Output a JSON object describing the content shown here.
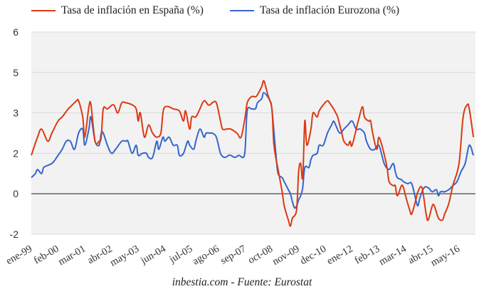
{
  "chart_data": {
    "type": "line",
    "title": "",
    "xlabel": "",
    "ylabel": "",
    "x_start": "ene-99",
    "x_months_total": 216,
    "x_tick_labels": [
      "ene-99",
      "feb-00",
      "mar-01",
      "abr-02",
      "may-03",
      "jun-04",
      "jul-05",
      "ago-06",
      "sep-07",
      "oct-08",
      "nov-09",
      "dec-10",
      "ene-12",
      "feb-13",
      "mar-14",
      "abr-15",
      "may-16"
    ],
    "x_tick_step_months": 13,
    "y_tick_labels": [
      "-2",
      "0",
      "2",
      "3",
      "5",
      "6"
    ],
    "y_tick_values": [
      -2,
      0,
      2,
      3,
      5,
      6
    ],
    "ylim": [
      -2,
      6
    ],
    "grid": true,
    "zero_line": true,
    "legend_position": "top",
    "series": [
      {
        "name": "Tasa de inflación en España (%)",
        "color": "#dc3912",
        "points": [
          [
            0,
            1.9
          ],
          [
            3,
            2.4
          ],
          [
            5,
            2.6
          ],
          [
            8,
            2.3
          ],
          [
            10,
            2.5
          ],
          [
            13,
            2.8
          ],
          [
            15,
            2.9
          ],
          [
            18,
            3.2
          ],
          [
            20,
            3.4
          ],
          [
            22,
            3.6
          ],
          [
            23,
            3.6
          ],
          [
            25,
            2.9
          ],
          [
            26,
            2.4
          ],
          [
            28,
            3.3
          ],
          [
            29,
            3.4
          ],
          [
            31,
            2.3
          ],
          [
            33,
            2.3
          ],
          [
            34,
            2.4
          ],
          [
            35,
            3.2
          ],
          [
            37,
            3.2
          ],
          [
            40,
            3.4
          ],
          [
            42,
            3.0
          ],
          [
            44,
            3.5
          ],
          [
            46,
            3.5
          ],
          [
            49,
            3.4
          ],
          [
            51,
            3.2
          ],
          [
            52,
            2.8
          ],
          [
            53,
            3.0
          ],
          [
            55,
            2.4
          ],
          [
            57,
            2.7
          ],
          [
            59,
            2.5
          ],
          [
            61,
            2.4
          ],
          [
            63,
            2.5
          ],
          [
            64,
            3.0
          ],
          [
            65,
            3.3
          ],
          [
            67,
            3.3
          ],
          [
            69,
            3.2
          ],
          [
            72,
            3.1
          ],
          [
            74,
            2.8
          ],
          [
            75,
            3.1
          ],
          [
            77,
            2.6
          ],
          [
            78,
            2.9
          ],
          [
            80,
            2.9
          ],
          [
            82,
            3.2
          ],
          [
            84,
            3.6
          ],
          [
            86,
            3.4
          ],
          [
            87,
            3.4
          ],
          [
            88,
            3.5
          ],
          [
            90,
            3.5
          ],
          [
            92,
            2.8
          ],
          [
            93,
            2.6
          ],
          [
            95,
            2.6
          ],
          [
            97,
            2.6
          ],
          [
            100,
            2.5
          ],
          [
            102,
            2.4
          ],
          [
            104,
            2.9
          ],
          [
            105,
            3.5
          ],
          [
            107,
            3.8
          ],
          [
            109,
            3.8
          ],
          [
            110,
            3.9
          ],
          [
            112,
            4.3
          ],
          [
            113,
            4.6
          ],
          [
            114,
            4.3
          ],
          [
            115,
            3.9
          ],
          [
            117,
            3.2
          ],
          [
            118,
            2.2
          ],
          [
            120,
            1.2
          ],
          [
            122,
            0.1
          ],
          [
            123,
            -0.6
          ],
          [
            125,
            -1.3
          ],
          [
            126,
            -1.6
          ],
          [
            127,
            -1.2
          ],
          [
            129,
            -0.8
          ],
          [
            130,
            1.1
          ],
          [
            131,
            1.5
          ],
          [
            132,
            0.8
          ],
          [
            133,
            2.8
          ],
          [
            134,
            2.2
          ],
          [
            136,
            2.6
          ],
          [
            137,
            3.0
          ],
          [
            139,
            2.9
          ],
          [
            140,
            3.1
          ],
          [
            142,
            3.4
          ],
          [
            144,
            3.6
          ],
          [
            145,
            3.5
          ],
          [
            147,
            3.2
          ],
          [
            148,
            3.0
          ],
          [
            149,
            2.9
          ],
          [
            151,
            2.5
          ],
          [
            152,
            2.3
          ],
          [
            154,
            2.2
          ],
          [
            155,
            2.3
          ],
          [
            156,
            2.2
          ],
          [
            159,
            2.8
          ],
          [
            161,
            3.3
          ],
          [
            162,
            2.9
          ],
          [
            164,
            2.8
          ],
          [
            165,
            2.8
          ],
          [
            166,
            2.5
          ],
          [
            168,
            2.1
          ],
          [
            169,
            2.4
          ],
          [
            171,
            2.1
          ],
          [
            173,
            1.3
          ],
          [
            174,
            0.6
          ],
          [
            176,
            0.4
          ],
          [
            177,
            0.4
          ],
          [
            178,
            -0.1
          ],
          [
            180,
            0.4
          ],
          [
            181,
            0.3
          ],
          [
            182,
            -0.1
          ],
          [
            184,
            -0.8
          ],
          [
            185,
            -1.0
          ],
          [
            187,
            -0.3
          ],
          [
            188,
            0.1
          ],
          [
            190,
            0.3
          ],
          [
            192,
            -1.0
          ],
          [
            193,
            -1.3
          ],
          [
            195,
            -0.6
          ],
          [
            196,
            -0.6
          ],
          [
            198,
            -1.2
          ],
          [
            200,
            -1.3
          ],
          [
            201,
            -1.0
          ],
          [
            203,
            -0.5
          ],
          [
            205,
            0.4
          ],
          [
            208,
            1.5
          ],
          [
            210,
            2.9
          ],
          [
            212,
            3.4
          ],
          [
            213,
            3.2
          ],
          [
            215,
            2.4
          ]
        ]
      },
      {
        "name": "Tasa de inflación Eurozona (%)",
        "color": "#3366cc",
        "points": [
          [
            0,
            0.8
          ],
          [
            2,
            1.0
          ],
          [
            3,
            1.2
          ],
          [
            5,
            1.0
          ],
          [
            6,
            1.3
          ],
          [
            8,
            1.4
          ],
          [
            10,
            1.5
          ],
          [
            11,
            1.6
          ],
          [
            13,
            1.9
          ],
          [
            15,
            2.1
          ],
          [
            17,
            2.3
          ],
          [
            19,
            2.3
          ],
          [
            21,
            2.1
          ],
          [
            23,
            2.5
          ],
          [
            25,
            2.6
          ],
          [
            26,
            2.2
          ],
          [
            28,
            2.6
          ],
          [
            29,
            2.9
          ],
          [
            31,
            2.3
          ],
          [
            33,
            2.2
          ],
          [
            34,
            2.5
          ],
          [
            35,
            2.5
          ],
          [
            37,
            2.2
          ],
          [
            39,
            2.0
          ],
          [
            41,
            2.1
          ],
          [
            44,
            2.3
          ],
          [
            46,
            2.3
          ],
          [
            47,
            2.3
          ],
          [
            49,
            2.0
          ],
          [
            51,
            2.2
          ],
          [
            52,
            1.9
          ],
          [
            54,
            2.0
          ],
          [
            56,
            2.0
          ],
          [
            57,
            1.8
          ],
          [
            59,
            1.8
          ],
          [
            61,
            2.3
          ],
          [
            62,
            2.1
          ],
          [
            64,
            2.4
          ],
          [
            65,
            2.3
          ],
          [
            67,
            2.4
          ],
          [
            69,
            2.2
          ],
          [
            71,
            2.2
          ],
          [
            72,
            1.9
          ],
          [
            74,
            2.0
          ],
          [
            76,
            2.3
          ],
          [
            77,
            2.2
          ],
          [
            79,
            2.1
          ],
          [
            80,
            2.3
          ],
          [
            82,
            2.6
          ],
          [
            84,
            2.4
          ],
          [
            85,
            2.5
          ],
          [
            87,
            2.5
          ],
          [
            88,
            2.5
          ],
          [
            90,
            2.4
          ],
          [
            92,
            2.0
          ],
          [
            94,
            1.8
          ],
          [
            96,
            1.9
          ],
          [
            97,
            1.9
          ],
          [
            99,
            1.8
          ],
          [
            101,
            1.9
          ],
          [
            103,
            1.8
          ],
          [
            104,
            2.1
          ],
          [
            105,
            3.1
          ],
          [
            107,
            3.2
          ],
          [
            109,
            3.2
          ],
          [
            110,
            3.5
          ],
          [
            112,
            3.7
          ],
          [
            113,
            4.0
          ],
          [
            115,
            3.8
          ],
          [
            116,
            3.6
          ],
          [
            117,
            3.2
          ],
          [
            119,
            1.9
          ],
          [
            120,
            1.0
          ],
          [
            122,
            0.8
          ],
          [
            123,
            0.6
          ],
          [
            125,
            0.2
          ],
          [
            126,
            0.0
          ],
          [
            127,
            -0.4
          ],
          [
            128,
            -0.7
          ],
          [
            129,
            -0.6
          ],
          [
            130,
            -0.3
          ],
          [
            131,
            -0.1
          ],
          [
            132,
            0.3
          ],
          [
            133,
            1.3
          ],
          [
            135,
            1.3
          ],
          [
            136,
            1.7
          ],
          [
            137,
            1.9
          ],
          [
            139,
            2.0
          ],
          [
            140,
            2.2
          ],
          [
            142,
            2.2
          ],
          [
            144,
            2.5
          ],
          [
            146,
            2.7
          ],
          [
            147,
            2.8
          ],
          [
            148,
            2.7
          ],
          [
            150,
            2.5
          ],
          [
            152,
            2.6
          ],
          [
            154,
            2.7
          ],
          [
            156,
            2.8
          ],
          [
            158,
            2.6
          ],
          [
            160,
            2.6
          ],
          [
            162,
            2.5
          ],
          [
            163,
            2.3
          ],
          [
            165,
            2.1
          ],
          [
            167,
            2.1
          ],
          [
            169,
            2.2
          ],
          [
            171,
            1.7
          ],
          [
            172,
            1.4
          ],
          [
            174,
            1.2
          ],
          [
            176,
            1.5
          ],
          [
            177,
            1.1
          ],
          [
            178,
            0.8
          ],
          [
            180,
            0.7
          ],
          [
            181,
            0.6
          ],
          [
            183,
            0.5
          ],
          [
            185,
            0.5
          ],
          [
            187,
            -0.3
          ],
          [
            188,
            -0.6
          ],
          [
            189,
            -0.2
          ],
          [
            191,
            0.3
          ],
          [
            193,
            0.3
          ],
          [
            195,
            0.1
          ],
          [
            197,
            0.2
          ],
          [
            198,
            -0.1
          ],
          [
            199,
            0.1
          ],
          [
            201,
            0.1
          ],
          [
            203,
            0.2
          ],
          [
            205,
            0.4
          ],
          [
            207,
            0.6
          ],
          [
            209,
            1.1
          ],
          [
            211,
            1.5
          ],
          [
            213,
            2.2
          ],
          [
            215,
            1.9
          ]
        ]
      }
    ]
  },
  "caption": "inbestia.com - Fuente: Eurostat"
}
